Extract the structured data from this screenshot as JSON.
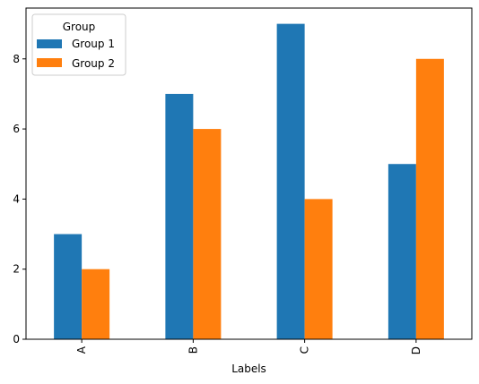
{
  "chart_data": {
    "type": "bar",
    "categories": [
      "A",
      "B",
      "C",
      "D"
    ],
    "series": [
      {
        "name": "Group 1",
        "values": [
          3,
          7,
          9,
          5
        ],
        "color": "#1f77b4"
      },
      {
        "name": "Group 2",
        "values": [
          2,
          6,
          4,
          8
        ],
        "color": "#ff7f0e"
      }
    ],
    "title": "",
    "xlabel": "Labels",
    "ylabel": "",
    "ylim": [
      0,
      9.45
    ],
    "yticks": [
      0,
      2,
      4,
      6,
      8
    ],
    "grid": false,
    "legend": {
      "title": "Group",
      "placement": "top-left"
    }
  }
}
